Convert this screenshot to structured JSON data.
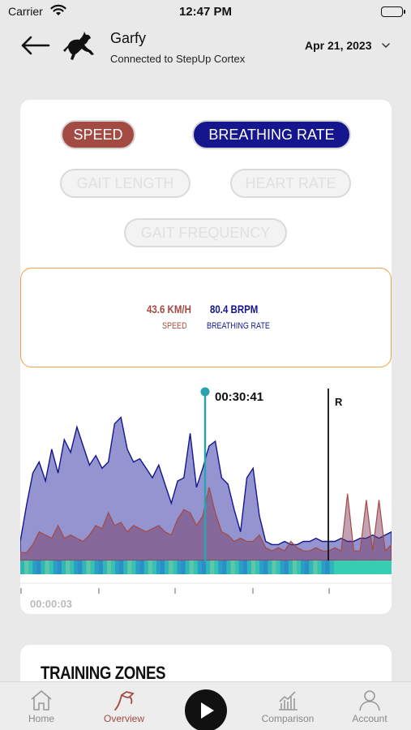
{
  "status_bar": {
    "carrier": "Carrier",
    "time": "12:47 PM"
  },
  "header": {
    "horse_name": "Garfy",
    "connection": "Connected to StepUp Cortex",
    "date": "Apr 21, 2023",
    "logo_icon": "horse-icon"
  },
  "metrics": {
    "speed_label": "SPEED",
    "breathing_label": "BREATHING RATE",
    "gait_length_label": "GAIT LENGTH",
    "heart_rate_label": "HEART RATE",
    "gait_frequency_label": "GAIT FREQUENCY"
  },
  "readout": {
    "speed_value": "43.6 KM/H",
    "speed_caption": "SPEED",
    "breathing_value": "80.4 BRPM",
    "breathing_caption": "BREATHING RATE"
  },
  "chart": {
    "cursor_time": "00:30:41",
    "marker_label": "R",
    "start_time": "00:00:03",
    "colors": {
      "speed": "#a34a42",
      "breathing": "#15158e",
      "cursor": "#2aa3b0"
    }
  },
  "chart_data": {
    "type": "area",
    "series": [
      {
        "values": [
          0.12,
          0.35,
          0.55,
          0.62,
          0.5,
          0.7,
          0.55,
          0.76,
          0.68,
          0.84,
          0.72,
          0.6,
          0.66,
          0.58,
          0.62,
          0.86,
          0.9,
          0.7,
          0.62,
          0.64,
          0.58,
          0.52,
          0.6,
          0.48,
          0.36,
          0.5,
          0.52,
          0.8,
          0.46,
          0.58,
          0.72,
          0.75,
          0.52,
          0.48,
          0.32,
          0.18,
          0.52,
          0.58,
          0.28,
          0.12,
          0.1,
          0.1,
          0.12,
          0.1,
          0.1,
          0.12,
          0.12,
          0.14,
          0.12,
          0.12,
          0.12,
          0.14,
          0.12,
          0.12,
          0.14,
          0.14,
          0.16,
          0.14,
          0.16,
          0.18
        ]
      },
      {
        "values": [
          0.05,
          0.05,
          0.1,
          0.18,
          0.16,
          0.14,
          0.22,
          0.14,
          0.16,
          0.14,
          0.12,
          0.16,
          0.22,
          0.2,
          0.3,
          0.22,
          0.24,
          0.18,
          0.22,
          0.2,
          0.18,
          0.2,
          0.22,
          0.18,
          0.16,
          0.26,
          0.32,
          0.3,
          0.22,
          0.28,
          0.46,
          0.3,
          0.18,
          0.16,
          0.12,
          0.14,
          0.12,
          0.12,
          0.16,
          0.08,
          0.06,
          0.08,
          0.06,
          0.12,
          0.08,
          0.06,
          0.06,
          0.08,
          0.06,
          0.06,
          0.08,
          0.06,
          0.42,
          0.06,
          0.06,
          0.38,
          0.06,
          0.38,
          0.06,
          0.1
        ]
      }
    ]
  },
  "training_zones": {
    "title": "TRAINING ZONES"
  },
  "tabs": {
    "home": "Home",
    "overview": "Overview",
    "comparison": "Comparison",
    "account": "Account"
  }
}
